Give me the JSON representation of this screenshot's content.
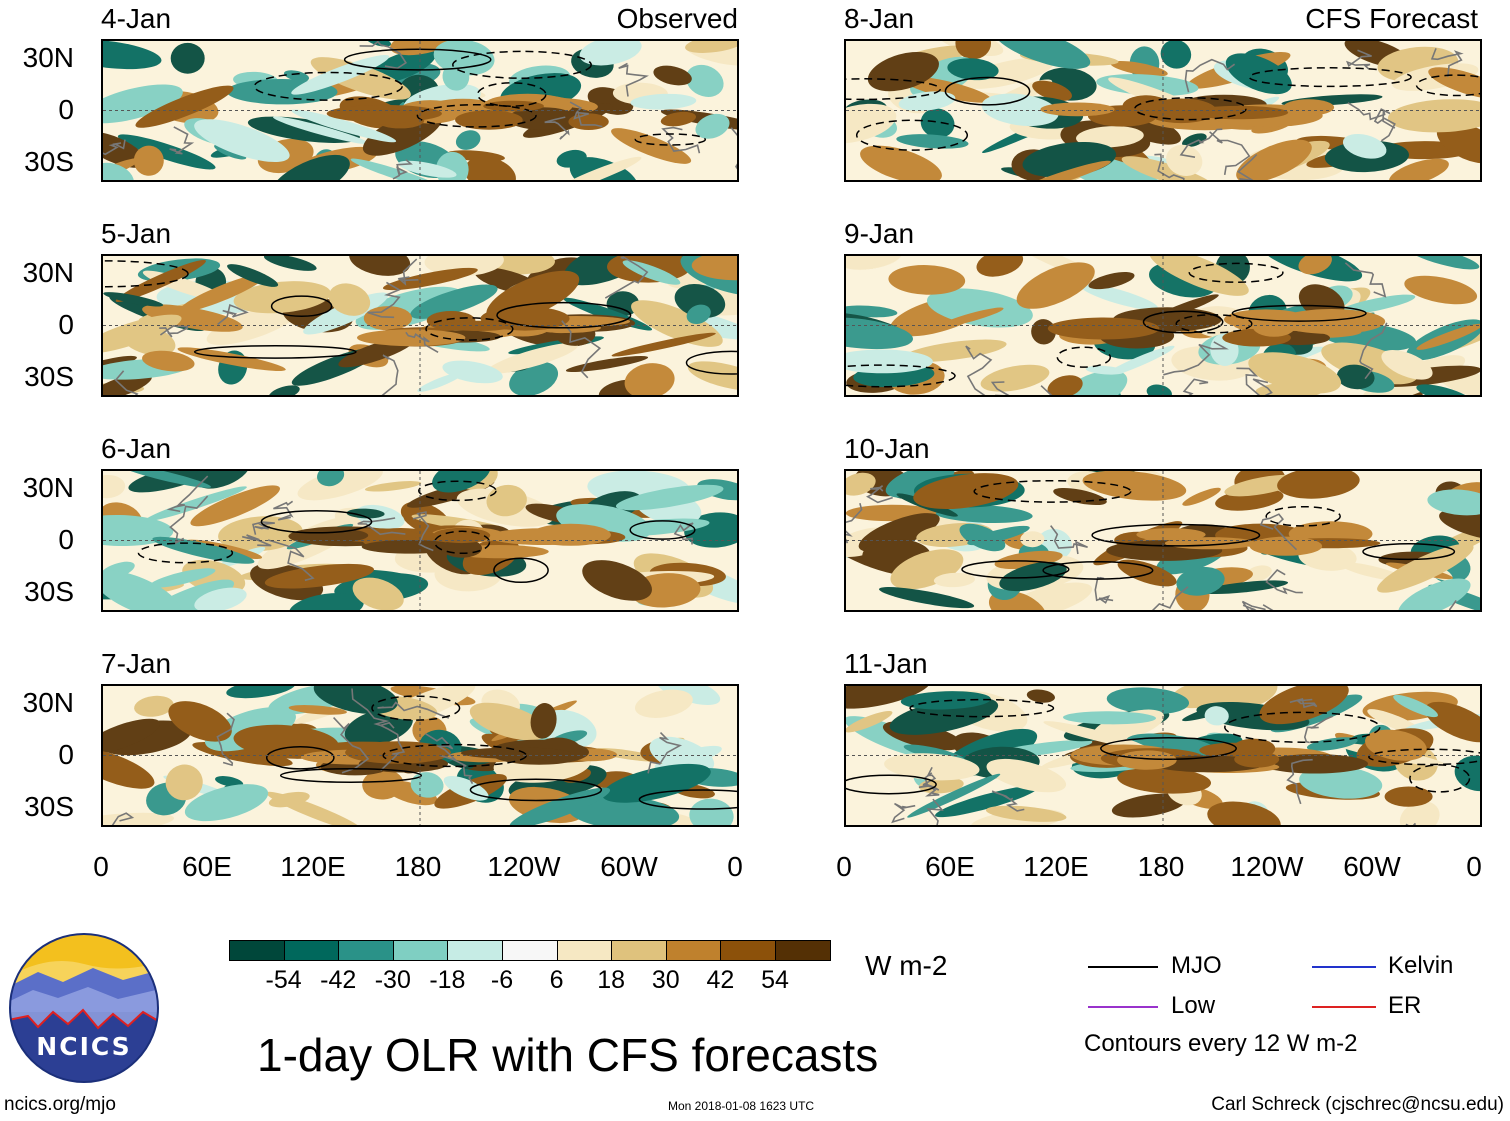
{
  "title": "1-day OLR with CFS forecasts",
  "left_column_tag": "Observed",
  "right_column_tag": "CFS Forecast",
  "panels_left": [
    {
      "date": "4-Jan",
      "tag": "Observed"
    },
    {
      "date": "5-Jan"
    },
    {
      "date": "6-Jan"
    },
    {
      "date": "7-Jan"
    }
  ],
  "panels_right": [
    {
      "date": "8-Jan",
      "tag": "CFS Forecast"
    },
    {
      "date": "9-Jan"
    },
    {
      "date": "10-Jan"
    },
    {
      "date": "11-Jan"
    }
  ],
  "lat_labels": [
    "30N",
    "0",
    "30S"
  ],
  "lon_labels": [
    "0",
    "60E",
    "120E",
    "180",
    "120W",
    "60W",
    "0"
  ],
  "colorbar": {
    "colors": [
      "#00473a",
      "#00685c",
      "#2a9288",
      "#7fcfc2",
      "#c6ece5",
      "#f7f7f7",
      "#f6e8c3",
      "#dfc27d",
      "#bf812d",
      "#8c510a",
      "#543005"
    ],
    "ticks": [
      "-54",
      "-42",
      "-30",
      "-18",
      "-6",
      "6",
      "18",
      "30",
      "42",
      "54"
    ],
    "units": "W m-2"
  },
  "legend": {
    "items": [
      {
        "label": "MJO",
        "color": "#000000"
      },
      {
        "label": "Kelvin",
        "color": "#2233cc"
      },
      {
        "label": "Low",
        "color": "#9933cc"
      },
      {
        "label": "ER",
        "color": "#dd2222"
      }
    ],
    "contour_note": "Contours every 12 W m-2"
  },
  "logo": {
    "text": "NCICS"
  },
  "footer": {
    "url": "ncics.org/mjo",
    "timestamp": "Mon 2018-01-08 1623 UTC",
    "author": "Carl Schreck (cjschrec@ncsu.edu)"
  }
}
